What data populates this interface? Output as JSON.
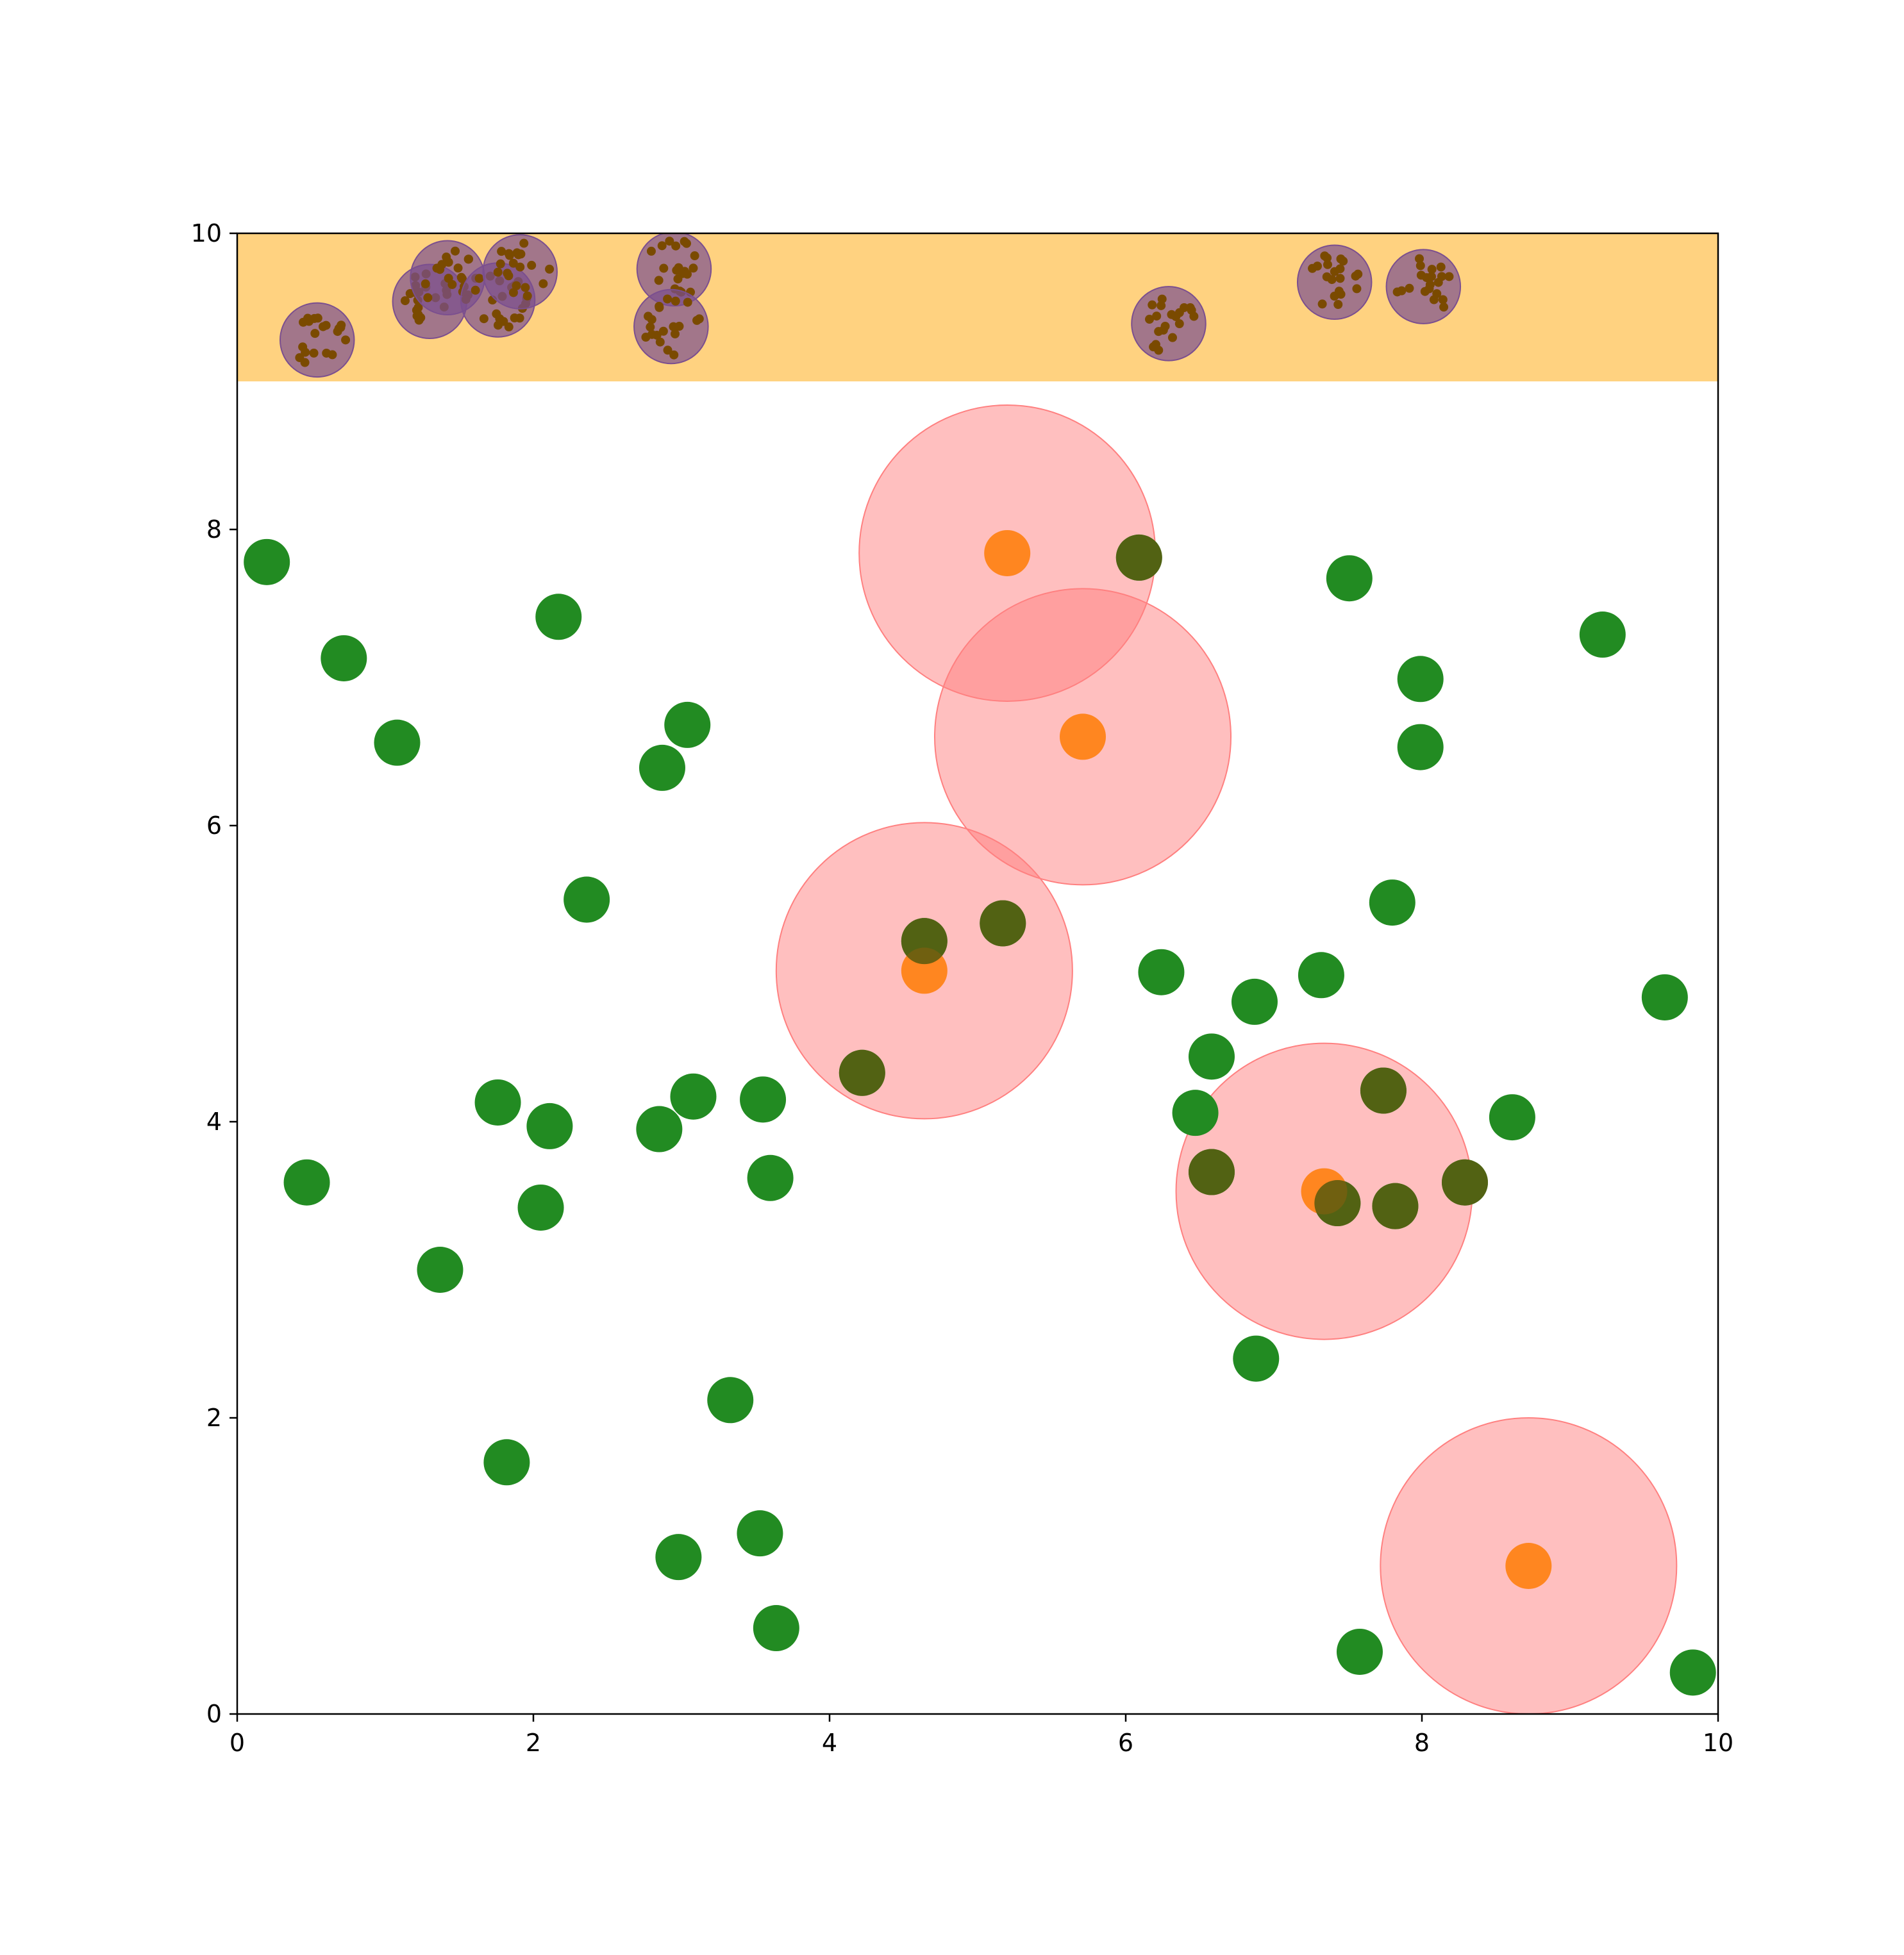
{
  "chart_data": {
    "type": "scatter",
    "title": "",
    "xlabel": "",
    "ylabel": "",
    "xlim": [
      0,
      10
    ],
    "ylim": [
      0,
      10
    ],
    "xticks": [
      "0",
      "2",
      "4",
      "6",
      "8",
      "10"
    ],
    "yticks": [
      "0",
      "2",
      "4",
      "6",
      "8",
      "10"
    ],
    "grid": false,
    "legend": "none",
    "colors": {
      "band": "#ffd280",
      "green_points": "#228b22",
      "orange_points": "#ff7f0e",
      "red_circles": "#ff8080",
      "purple_circles": "#7b4f8f",
      "brown_dots": "#7a4a00"
    },
    "band": {
      "y_from": 9,
      "y_to": 10
    },
    "green_points": [
      [
        0.2,
        7.78
      ],
      [
        0.72,
        7.13
      ],
      [
        1.08,
        6.56
      ],
      [
        2.17,
        7.41
      ],
      [
        2.36,
        5.5
      ],
      [
        2.87,
        6.39
      ],
      [
        3.04,
        6.68
      ],
      [
        0.47,
        3.59
      ],
      [
        1.76,
        4.13
      ],
      [
        2.11,
        3.97
      ],
      [
        2.05,
        3.42
      ],
      [
        1.37,
        3.0
      ],
      [
        1.82,
        1.7
      ],
      [
        2.85,
        3.95
      ],
      [
        3.08,
        4.17
      ],
      [
        3.55,
        4.15
      ],
      [
        3.6,
        3.62
      ],
      [
        3.33,
        2.12
      ],
      [
        2.98,
        1.06
      ],
      [
        3.53,
        1.22
      ],
      [
        3.64,
        0.58
      ],
      [
        4.22,
        4.33
      ],
      [
        4.64,
        5.22
      ],
      [
        5.17,
        5.34
      ],
      [
        6.09,
        7.81
      ],
      [
        6.24,
        5.01
      ],
      [
        6.58,
        4.44
      ],
      [
        6.47,
        4.06
      ],
      [
        6.58,
        3.66
      ],
      [
        6.87,
        4.81
      ],
      [
        6.88,
        2.4
      ],
      [
        7.32,
        4.99
      ],
      [
        7.43,
        3.45
      ],
      [
        7.51,
        7.67
      ],
      [
        7.74,
        4.21
      ],
      [
        7.82,
        3.43
      ],
      [
        7.8,
        5.48
      ],
      [
        7.99,
        6.99
      ],
      [
        7.99,
        6.53
      ],
      [
        8.29,
        3.59
      ],
      [
        8.61,
        4.03
      ],
      [
        7.58,
        0.42
      ],
      [
        9.22,
        7.29
      ],
      [
        9.64,
        4.84
      ],
      [
        9.83,
        0.28
      ]
    ],
    "orange_points": [
      [
        5.2,
        7.84
      ],
      [
        5.71,
        6.6
      ],
      [
        4.64,
        5.02
      ],
      [
        7.34,
        3.53
      ],
      [
        8.72,
        1.0
      ]
    ],
    "red_circles": {
      "radius": 1,
      "centers": [
        [
          5.2,
          7.84
        ],
        [
          5.71,
          6.6
        ],
        [
          4.64,
          5.02
        ],
        [
          7.34,
          3.53
        ],
        [
          8.72,
          1.0
        ]
      ]
    },
    "purple_clusters": {
      "radius": 0.25,
      "centers": [
        [
          0.54,
          9.28
        ],
        [
          1.3,
          9.54
        ],
        [
          1.42,
          9.7
        ],
        [
          1.76,
          9.55
        ],
        [
          1.91,
          9.74
        ],
        [
          2.95,
          9.76
        ],
        [
          2.93,
          9.37
        ],
        [
          6.29,
          9.39
        ],
        [
          7.41,
          9.67
        ],
        [
          8.01,
          9.64
        ]
      ]
    }
  }
}
